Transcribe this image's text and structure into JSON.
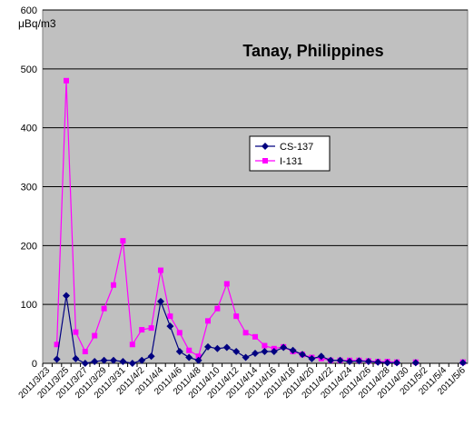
{
  "chart_data": {
    "type": "line",
    "title": "Tanay, Philippines",
    "y_label": "μBq/m3",
    "categories": [
      "2011/3/23",
      null,
      "2011/3/25",
      null,
      "2011/3/27",
      null,
      "2011/3/29",
      null,
      "2011/3/31",
      null,
      "2011/4/2",
      null,
      "2011/4/4",
      null,
      "2011/4/6",
      null,
      "2011/4/8",
      null,
      "2011/4/10",
      null,
      "2011/4/12",
      null,
      "2011/4/14",
      null,
      "2011/4/16",
      null,
      "2011/4/18",
      null,
      "2011/4/20",
      null,
      "2011/4/22",
      null,
      "2011/4/24",
      null,
      "2011/4/26",
      null,
      "2011/4/28",
      null,
      "2011/4/30",
      null,
      "2011/5/2",
      null,
      "2011/5/4",
      null,
      "2011/5/6"
    ],
    "series": [
      {
        "name": "CS-137",
        "color": "#000080",
        "marker": "diamond",
        "values": [
          null,
          7,
          115,
          8,
          0,
          3,
          5,
          5,
          3,
          0,
          5,
          12,
          105,
          63,
          20,
          10,
          5,
          28,
          25,
          27,
          20,
          10,
          17,
          20,
          20,
          27,
          22,
          15,
          8,
          12,
          5,
          5,
          3,
          4,
          3,
          2,
          1,
          1,
          null,
          1,
          null,
          null,
          null,
          null,
          1
        ]
      },
      {
        "name": "I-131",
        "color": "#ff00ff",
        "marker": "square",
        "values": [
          null,
          32,
          480,
          53,
          20,
          47,
          93,
          133,
          208,
          32,
          57,
          60,
          158,
          80,
          52,
          22,
          12,
          72,
          93,
          135,
          80,
          52,
          45,
          30,
          25,
          28,
          20,
          15,
          10,
          8,
          5,
          5,
          5,
          5,
          4,
          3,
          3,
          2,
          null,
          2,
          null,
          null,
          null,
          null,
          2
        ]
      }
    ],
    "ylim": [
      0,
      600
    ],
    "yticks": [
      0,
      100,
      200,
      300,
      400,
      500,
      600
    ],
    "grid": true,
    "background": "#c0c0c0"
  }
}
